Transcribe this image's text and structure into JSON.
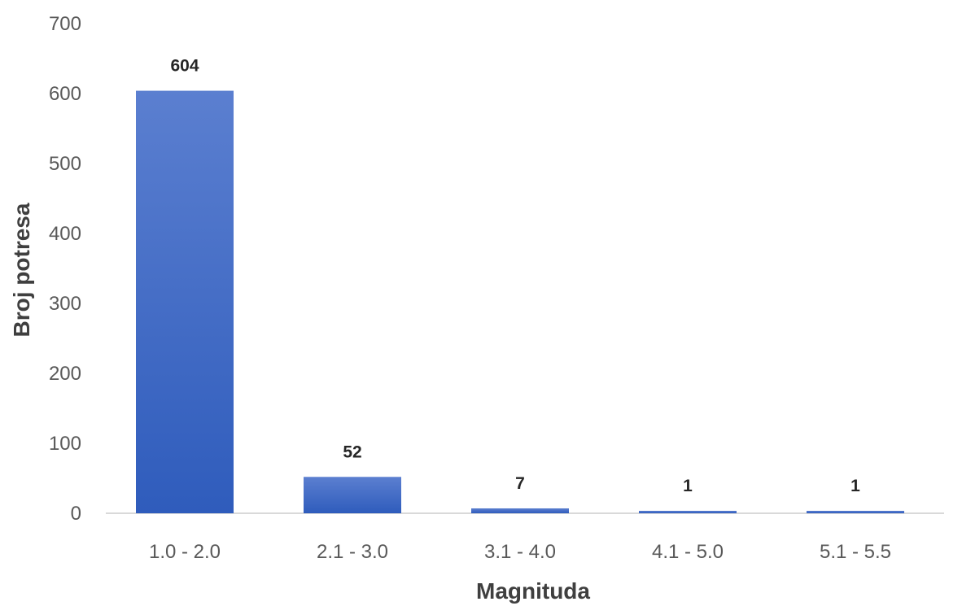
{
  "chart_data": {
    "type": "bar",
    "title": "",
    "xlabel": "Magnituda",
    "ylabel": "Broj potresa",
    "categories": [
      "1.0 - 2.0",
      "2.1 - 3.0",
      "3.1 - 4.0",
      "4.1 - 5.0",
      "5.1 - 5.5"
    ],
    "values": [
      604,
      52,
      7,
      1,
      1
    ],
    "data_labels": [
      "604",
      "52",
      "7",
      "1",
      "1"
    ],
    "ylim": [
      0,
      700
    ],
    "yticks": [
      0,
      100,
      200,
      300,
      400,
      500,
      600,
      700
    ],
    "ytick_labels": [
      "0",
      "100",
      "200",
      "300",
      "400",
      "500",
      "600",
      "700"
    ],
    "grid": false,
    "legend": "none",
    "colors": {
      "bar_top": "#5b7fd0",
      "bar_bottom": "#2f5cbc",
      "axis": "#d9d9d9"
    }
  }
}
